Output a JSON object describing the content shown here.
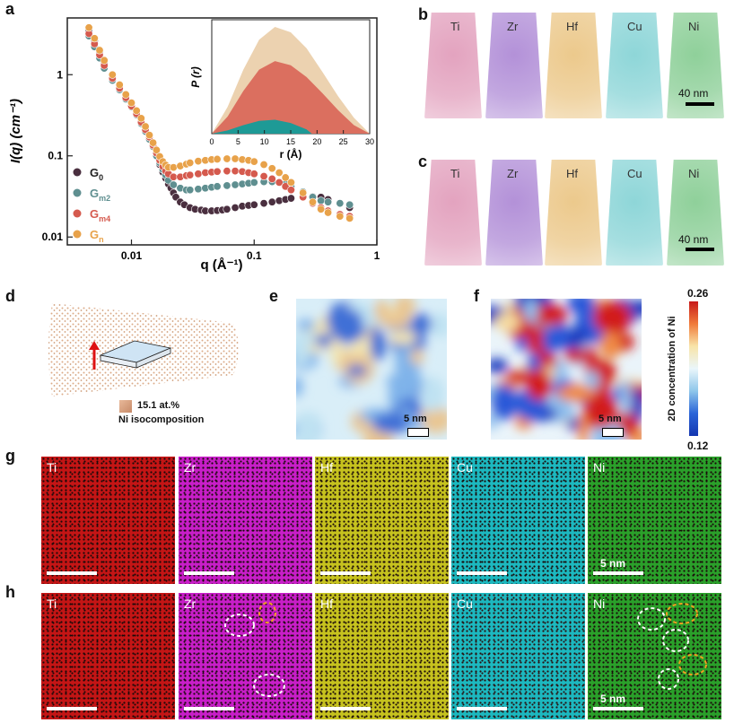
{
  "panel_letters": {
    "a": "a",
    "b": "b",
    "c": "c",
    "d": "d",
    "e": "e",
    "f": "f",
    "g": "g",
    "h": "h"
  },
  "colors": {
    "G0": "#4a2f3f",
    "Gm2": "#5f8f90",
    "Gm4": "#d55a4e",
    "Gn": "#e8a24a",
    "Ti": "#e3a3bf",
    "Zr": "#b391d8",
    "Hf": "#ecc98c",
    "Cu": "#8ed6d8",
    "Ni": "#8fd09a",
    "map_Ti": "#c41515",
    "map_Zr": "#c81ec8",
    "map_Hf": "#c6c21e",
    "map_Cu": "#1cb8bf",
    "map_Ni": "#2aa02a"
  },
  "chart_data": [
    {
      "type": "scatter",
      "panel": "a",
      "xlabel": "q (Å⁻¹)",
      "ylabel": "I(q) (cm⁻¹)",
      "xscale": "log",
      "yscale": "log",
      "xlim": [
        0.003,
        1
      ],
      "ylim": [
        0.008,
        5
      ],
      "xticks": [
        "0.01",
        "0.1",
        "1"
      ],
      "yticks": [
        "0.01",
        "0.1",
        "1"
      ],
      "legend_placement": "bottom-left",
      "series": [
        {
          "name": "G0",
          "label_main": "G",
          "label_sub": "0",
          "color": "#4a2f3f",
          "x": [
            0.0045,
            0.005,
            0.0055,
            0.006,
            0.007,
            0.008,
            0.009,
            0.01,
            0.011,
            0.012,
            0.013,
            0.014,
            0.015,
            0.016,
            0.017,
            0.018,
            0.019,
            0.02,
            0.021,
            0.022,
            0.023,
            0.025,
            0.027,
            0.03,
            0.033,
            0.037,
            0.04,
            0.045,
            0.05,
            0.055,
            0.06,
            0.07,
            0.08,
            0.09,
            0.1,
            0.12,
            0.14,
            0.16,
            0.18,
            0.2,
            0.25,
            0.3,
            0.35,
            0.4,
            0.5,
            0.6
          ],
          "y": [
            3.5,
            2.6,
            1.9,
            1.4,
            0.95,
            0.72,
            0.55,
            0.43,
            0.34,
            0.27,
            0.22,
            0.17,
            0.13,
            0.1,
            0.078,
            0.063,
            0.053,
            0.045,
            0.04,
            0.035,
            0.031,
            0.027,
            0.025,
            0.023,
            0.022,
            0.0215,
            0.021,
            0.021,
            0.0212,
            0.0215,
            0.022,
            0.023,
            0.024,
            0.0245,
            0.025,
            0.026,
            0.027,
            0.028,
            0.029,
            0.03,
            0.031,
            0.0315,
            0.031,
            0.029,
            0.026,
            0.023
          ]
        },
        {
          "name": "Gm2",
          "label_main": "G",
          "label_sub": "m2",
          "color": "#5f8f90",
          "x": [
            0.0045,
            0.005,
            0.0055,
            0.006,
            0.007,
            0.008,
            0.009,
            0.01,
            0.011,
            0.012,
            0.013,
            0.014,
            0.015,
            0.016,
            0.017,
            0.018,
            0.019,
            0.02,
            0.022,
            0.025,
            0.028,
            0.03,
            0.035,
            0.04,
            0.045,
            0.05,
            0.06,
            0.07,
            0.08,
            0.09,
            0.1,
            0.12,
            0.14,
            0.16,
            0.18,
            0.2,
            0.25,
            0.3,
            0.35,
            0.4,
            0.5,
            0.6
          ],
          "y": [
            3.0,
            2.2,
            1.6,
            1.2,
            0.85,
            0.65,
            0.5,
            0.4,
            0.32,
            0.25,
            0.2,
            0.16,
            0.13,
            0.1,
            0.082,
            0.068,
            0.058,
            0.05,
            0.044,
            0.04,
            0.038,
            0.038,
            0.039,
            0.04,
            0.041,
            0.042,
            0.043,
            0.044,
            0.045,
            0.046,
            0.047,
            0.048,
            0.048,
            0.047,
            0.045,
            0.042,
            0.036,
            0.031,
            0.028,
            0.027,
            0.026,
            0.025
          ]
        },
        {
          "name": "Gm4",
          "label_main": "G",
          "label_sub": "m4",
          "color": "#d55a4e",
          "x": [
            0.0045,
            0.005,
            0.0055,
            0.006,
            0.007,
            0.008,
            0.009,
            0.01,
            0.011,
            0.012,
            0.013,
            0.014,
            0.015,
            0.016,
            0.017,
            0.018,
            0.019,
            0.02,
            0.022,
            0.025,
            0.028,
            0.03,
            0.035,
            0.04,
            0.045,
            0.05,
            0.06,
            0.07,
            0.08,
            0.09,
            0.1,
            0.12,
            0.14,
            0.16,
            0.18,
            0.2,
            0.25,
            0.3,
            0.35,
            0.4,
            0.5,
            0.6
          ],
          "y": [
            3.2,
            2.4,
            1.75,
            1.3,
            0.9,
            0.68,
            0.52,
            0.41,
            0.33,
            0.26,
            0.21,
            0.17,
            0.135,
            0.108,
            0.088,
            0.074,
            0.065,
            0.06,
            0.055,
            0.055,
            0.057,
            0.058,
            0.06,
            0.062,
            0.063,
            0.064,
            0.065,
            0.065,
            0.064,
            0.062,
            0.06,
            0.056,
            0.052,
            0.047,
            0.042,
            0.038,
            0.031,
            0.026,
            0.023,
            0.021,
            0.019,
            0.018
          ]
        },
        {
          "name": "Gn",
          "label_main": "G",
          "label_sub": "n",
          "color": "#e8a24a",
          "x": [
            0.0045,
            0.005,
            0.0055,
            0.006,
            0.007,
            0.008,
            0.009,
            0.01,
            0.011,
            0.012,
            0.013,
            0.014,
            0.015,
            0.016,
            0.017,
            0.018,
            0.019,
            0.02,
            0.022,
            0.025,
            0.028,
            0.03,
            0.035,
            0.04,
            0.045,
            0.05,
            0.06,
            0.07,
            0.08,
            0.09,
            0.1,
            0.12,
            0.14,
            0.16,
            0.18,
            0.2,
            0.25,
            0.3,
            0.35,
            0.4,
            0.5,
            0.6
          ],
          "y": [
            3.8,
            2.8,
            2.0,
            1.5,
            1.0,
            0.75,
            0.57,
            0.45,
            0.36,
            0.29,
            0.23,
            0.18,
            0.145,
            0.118,
            0.098,
            0.085,
            0.077,
            0.072,
            0.072,
            0.075,
            0.079,
            0.082,
            0.086,
            0.088,
            0.09,
            0.091,
            0.092,
            0.092,
            0.09,
            0.088,
            0.085,
            0.078,
            0.07,
            0.062,
            0.054,
            0.047,
            0.035,
            0.027,
            0.022,
            0.02,
            0.018,
            0.017
          ]
        }
      ]
    },
    {
      "type": "area",
      "panel": "a-inset",
      "xlabel": "r (Å)",
      "ylabel": "P (r)",
      "xlim": [
        0,
        30
      ],
      "xticks": [
        "0",
        "5",
        "10",
        "15",
        "20",
        "25",
        "30"
      ],
      "series": [
        {
          "name": "Gn",
          "color": "#ecd2b0",
          "x": [
            0,
            3,
            6,
            9,
            12,
            15,
            18,
            21,
            24,
            27,
            30
          ],
          "y": [
            0,
            0.25,
            0.6,
            0.88,
            1.0,
            0.95,
            0.8,
            0.58,
            0.35,
            0.15,
            0
          ]
        },
        {
          "name": "Gm4",
          "color": "#db6f5f",
          "x": [
            0,
            3,
            6,
            9,
            12,
            15,
            18,
            21,
            24,
            27,
            30
          ],
          "y": [
            0,
            0.16,
            0.4,
            0.6,
            0.68,
            0.64,
            0.53,
            0.38,
            0.22,
            0.08,
            0
          ]
        },
        {
          "name": "Gm2",
          "color": "#1e9a96",
          "x": [
            0,
            3,
            6,
            9,
            12,
            15,
            18,
            19,
            30
          ],
          "y": [
            0,
            0.03,
            0.08,
            0.12,
            0.13,
            0.1,
            0.04,
            0,
            0
          ]
        }
      ]
    }
  ],
  "panel_b": {
    "tips": [
      "Ti",
      "Zr",
      "Hf",
      "Cu",
      "Ni"
    ],
    "scale": "40 nm"
  },
  "panel_c": {
    "tips": [
      "Ti",
      "Zr",
      "Hf",
      "Cu",
      "Ni"
    ],
    "scale": "40 nm"
  },
  "panel_d": {
    "legend_line1": "15.1 at.%",
    "legend_line2": "Ni isocomposition"
  },
  "panel_e": {
    "scale": "5 nm"
  },
  "panel_f": {
    "scale": "5 nm"
  },
  "colorbar": {
    "title": "2D concentration of Ni",
    "max": "0.26",
    "min": "0.12"
  },
  "panel_g": {
    "maps": [
      "Ti",
      "Zr",
      "Hf",
      "Cu",
      "Ni"
    ],
    "scale": "5 nm"
  },
  "panel_h": {
    "maps": [
      "Ti",
      "Zr",
      "Hf",
      "Cu",
      "Ni"
    ],
    "scale": "5 nm"
  }
}
